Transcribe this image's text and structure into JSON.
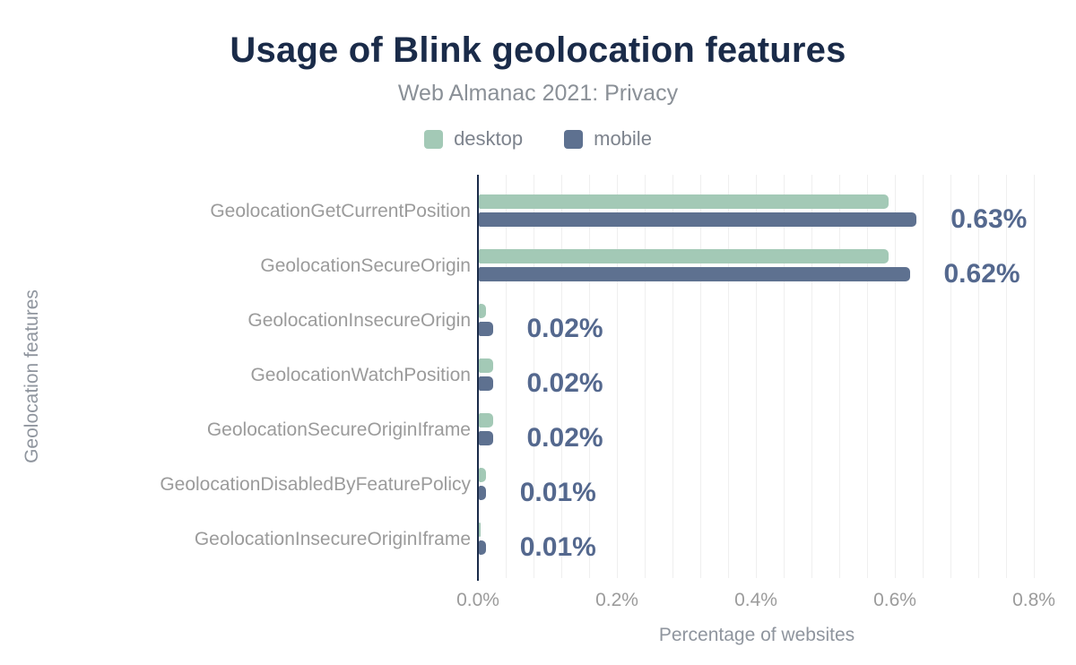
{
  "chart": {
    "title": "Usage of Blink geolocation features",
    "subtitle": "Web Almanac 2021: Privacy",
    "x_axis_title": "Percentage of websites",
    "y_axis_title": "Geolocation features"
  },
  "chart_data": {
    "type": "bar",
    "orientation": "horizontal",
    "title": "Usage of Blink geolocation features",
    "subtitle": "Web Almanac 2021: Privacy",
    "xlabel": "Percentage of websites",
    "ylabel": "Geolocation features",
    "xlim": [
      0,
      0.8
    ],
    "x_ticks": [
      "0.0%",
      "0.2%",
      "0.4%",
      "0.6%",
      "0.8%"
    ],
    "x_tick_values": [
      0,
      0.2,
      0.4,
      0.6,
      0.8
    ],
    "grid": true,
    "legend_position": "top",
    "categories": [
      "GeolocationGetCurrentPosition",
      "GeolocationSecureOrigin",
      "GeolocationInsecureOrigin",
      "GeolocationWatchPosition",
      "GeolocationSecureOriginIframe",
      "GeolocationDisabledByFeaturePolicy",
      "GeolocationInsecureOriginIframe"
    ],
    "series": [
      {
        "name": "desktop",
        "color": "#a3c9b6",
        "values": [
          0.59,
          0.59,
          0.01,
          0.02,
          0.02,
          0.01,
          0.0
        ]
      },
      {
        "name": "mobile",
        "color": "#5e7190",
        "values": [
          0.63,
          0.62,
          0.02,
          0.02,
          0.02,
          0.01,
          0.01
        ]
      }
    ],
    "value_labels": [
      "0.63%",
      "0.62%",
      "0.02%",
      "0.02%",
      "0.02%",
      "0.01%",
      "0.01%"
    ],
    "value_labels_series": "mobile",
    "units": "percent of websites"
  },
  "colors": {
    "title": "#1a2b49",
    "axis_line": "#1a2b49",
    "desktop": "#a3c9b6",
    "mobile": "#5e7190",
    "value_label": "#54688e",
    "category_label": "#9b9b9b",
    "tick_label": "#9b9b9b",
    "subtitle": "#8a9097",
    "legend_text": "#7d838d",
    "gridline": "#efefef",
    "background": "#ffffff"
  }
}
